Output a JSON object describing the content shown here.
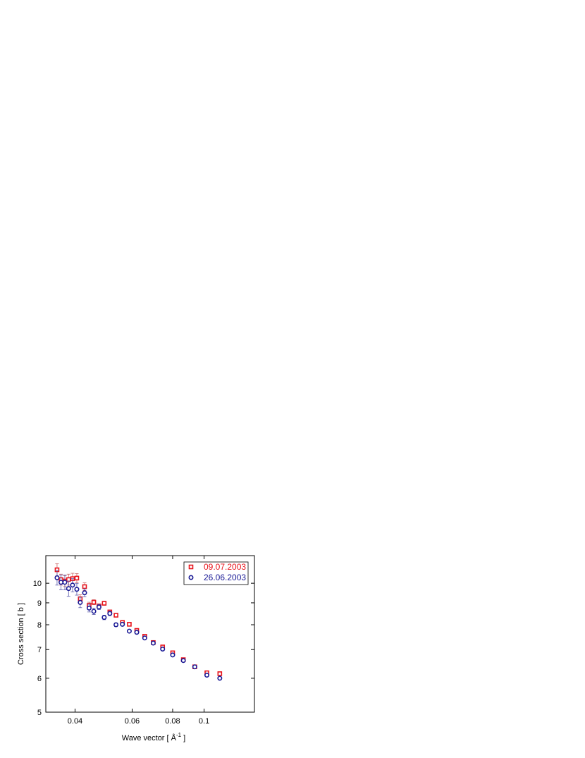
{
  "chart_data": {
    "type": "scatter",
    "xlabel": "Wave vector [ Å",
    "xlabel_sup": "-1",
    "xlabel_end": " ]",
    "ylabel": "Cross section [ b ]",
    "xscale": "log",
    "yscale": "log",
    "xlim": [
      0.0325,
      0.143
    ],
    "ylim": [
      5.0,
      11.6
    ],
    "x_ticks": [
      0.04,
      0.06,
      0.08,
      0.1
    ],
    "x_tick_labels": [
      "0.04",
      "0.06",
      "0.08",
      "0.1"
    ],
    "y_ticks": [
      5,
      6,
      7,
      8,
      9,
      10
    ],
    "y_tick_labels": [
      "5",
      "6",
      "7",
      "8",
      "9",
      "10"
    ],
    "grid": false,
    "legend_position": "top-right",
    "series": [
      {
        "name": "09.07.2003",
        "marker": "square",
        "color": "#e8141c",
        "errcolor": "#c86464",
        "points": [
          {
            "x": 0.0352,
            "y": 10.75,
            "err": 0.35
          },
          {
            "x": 0.0362,
            "y": 10.2,
            "err": 0.3
          },
          {
            "x": 0.0372,
            "y": 10.12,
            "err": 0.3
          },
          {
            "x": 0.0382,
            "y": 10.2,
            "err": 0.3
          },
          {
            "x": 0.0393,
            "y": 10.25,
            "err": 0.3
          },
          {
            "x": 0.0405,
            "y": 10.28,
            "err": 0.25
          },
          {
            "x": 0.0415,
            "y": 9.2,
            "err": 0.2
          },
          {
            "x": 0.0428,
            "y": 9.82,
            "err": 0.2
          },
          {
            "x": 0.0442,
            "y": 8.88,
            "err": 0.15
          },
          {
            "x": 0.0457,
            "y": 9.03,
            "err": 0.12
          },
          {
            "x": 0.0474,
            "y": 8.85,
            "err": 0.1
          },
          {
            "x": 0.0492,
            "y": 8.98,
            "err": 0.1
          },
          {
            "x": 0.0512,
            "y": 8.57,
            "err": 0.08
          },
          {
            "x": 0.0535,
            "y": 8.42,
            "err": 0.07
          },
          {
            "x": 0.056,
            "y": 8.1,
            "err": 0.06
          },
          {
            "x": 0.0588,
            "y": 8.02,
            "err": 0.05
          },
          {
            "x": 0.062,
            "y": 7.76,
            "err": 0.05
          },
          {
            "x": 0.0656,
            "y": 7.52,
            "err": 0.04
          },
          {
            "x": 0.0697,
            "y": 7.27,
            "err": 0.04
          },
          {
            "x": 0.0745,
            "y": 7.1,
            "err": 0.04
          },
          {
            "x": 0.08,
            "y": 6.88,
            "err": 0.04
          },
          {
            "x": 0.0863,
            "y": 6.63,
            "err": 0.03
          },
          {
            "x": 0.0936,
            "y": 6.38,
            "err": 0.03
          },
          {
            "x": 0.102,
            "y": 6.18,
            "err": 0.03
          },
          {
            "x": 0.1118,
            "y": 6.15,
            "err": 0.03
          }
        ]
      },
      {
        "name": "26.06.2003",
        "marker": "circle",
        "color": "#1a1a96",
        "errcolor": "#5a5aaa",
        "points": [
          {
            "x": 0.0352,
            "y": 10.3,
            "err": 0.4
          },
          {
            "x": 0.0362,
            "y": 10.05,
            "err": 0.4
          },
          {
            "x": 0.0372,
            "y": 10.05,
            "err": 0.4
          },
          {
            "x": 0.0382,
            "y": 9.72,
            "err": 0.4
          },
          {
            "x": 0.0393,
            "y": 9.9,
            "err": 0.35
          },
          {
            "x": 0.0405,
            "y": 9.68,
            "err": 0.3
          },
          {
            "x": 0.0415,
            "y": 9.02,
            "err": 0.25
          },
          {
            "x": 0.0428,
            "y": 9.5,
            "err": 0.2
          },
          {
            "x": 0.0442,
            "y": 8.75,
            "err": 0.18
          },
          {
            "x": 0.0457,
            "y": 8.6,
            "err": 0.15
          },
          {
            "x": 0.0474,
            "y": 8.8,
            "err": 0.12
          },
          {
            "x": 0.0492,
            "y": 8.32,
            "err": 0.1
          },
          {
            "x": 0.0512,
            "y": 8.5,
            "err": 0.1
          },
          {
            "x": 0.0535,
            "y": 8.0,
            "err": 0.08
          },
          {
            "x": 0.056,
            "y": 8.02,
            "err": 0.07
          },
          {
            "x": 0.0588,
            "y": 7.73,
            "err": 0.06
          },
          {
            "x": 0.062,
            "y": 7.68,
            "err": 0.05
          },
          {
            "x": 0.0656,
            "y": 7.45,
            "err": 0.05
          },
          {
            "x": 0.0697,
            "y": 7.25,
            "err": 0.04
          },
          {
            "x": 0.0745,
            "y": 7.02,
            "err": 0.04
          },
          {
            "x": 0.08,
            "y": 6.8,
            "err": 0.04
          },
          {
            "x": 0.0863,
            "y": 6.6,
            "err": 0.03
          },
          {
            "x": 0.0936,
            "y": 6.38,
            "err": 0.03
          },
          {
            "x": 0.102,
            "y": 6.1,
            "err": 0.03
          },
          {
            "x": 0.1118,
            "y": 6.0,
            "err": 0.03
          }
        ]
      }
    ]
  }
}
